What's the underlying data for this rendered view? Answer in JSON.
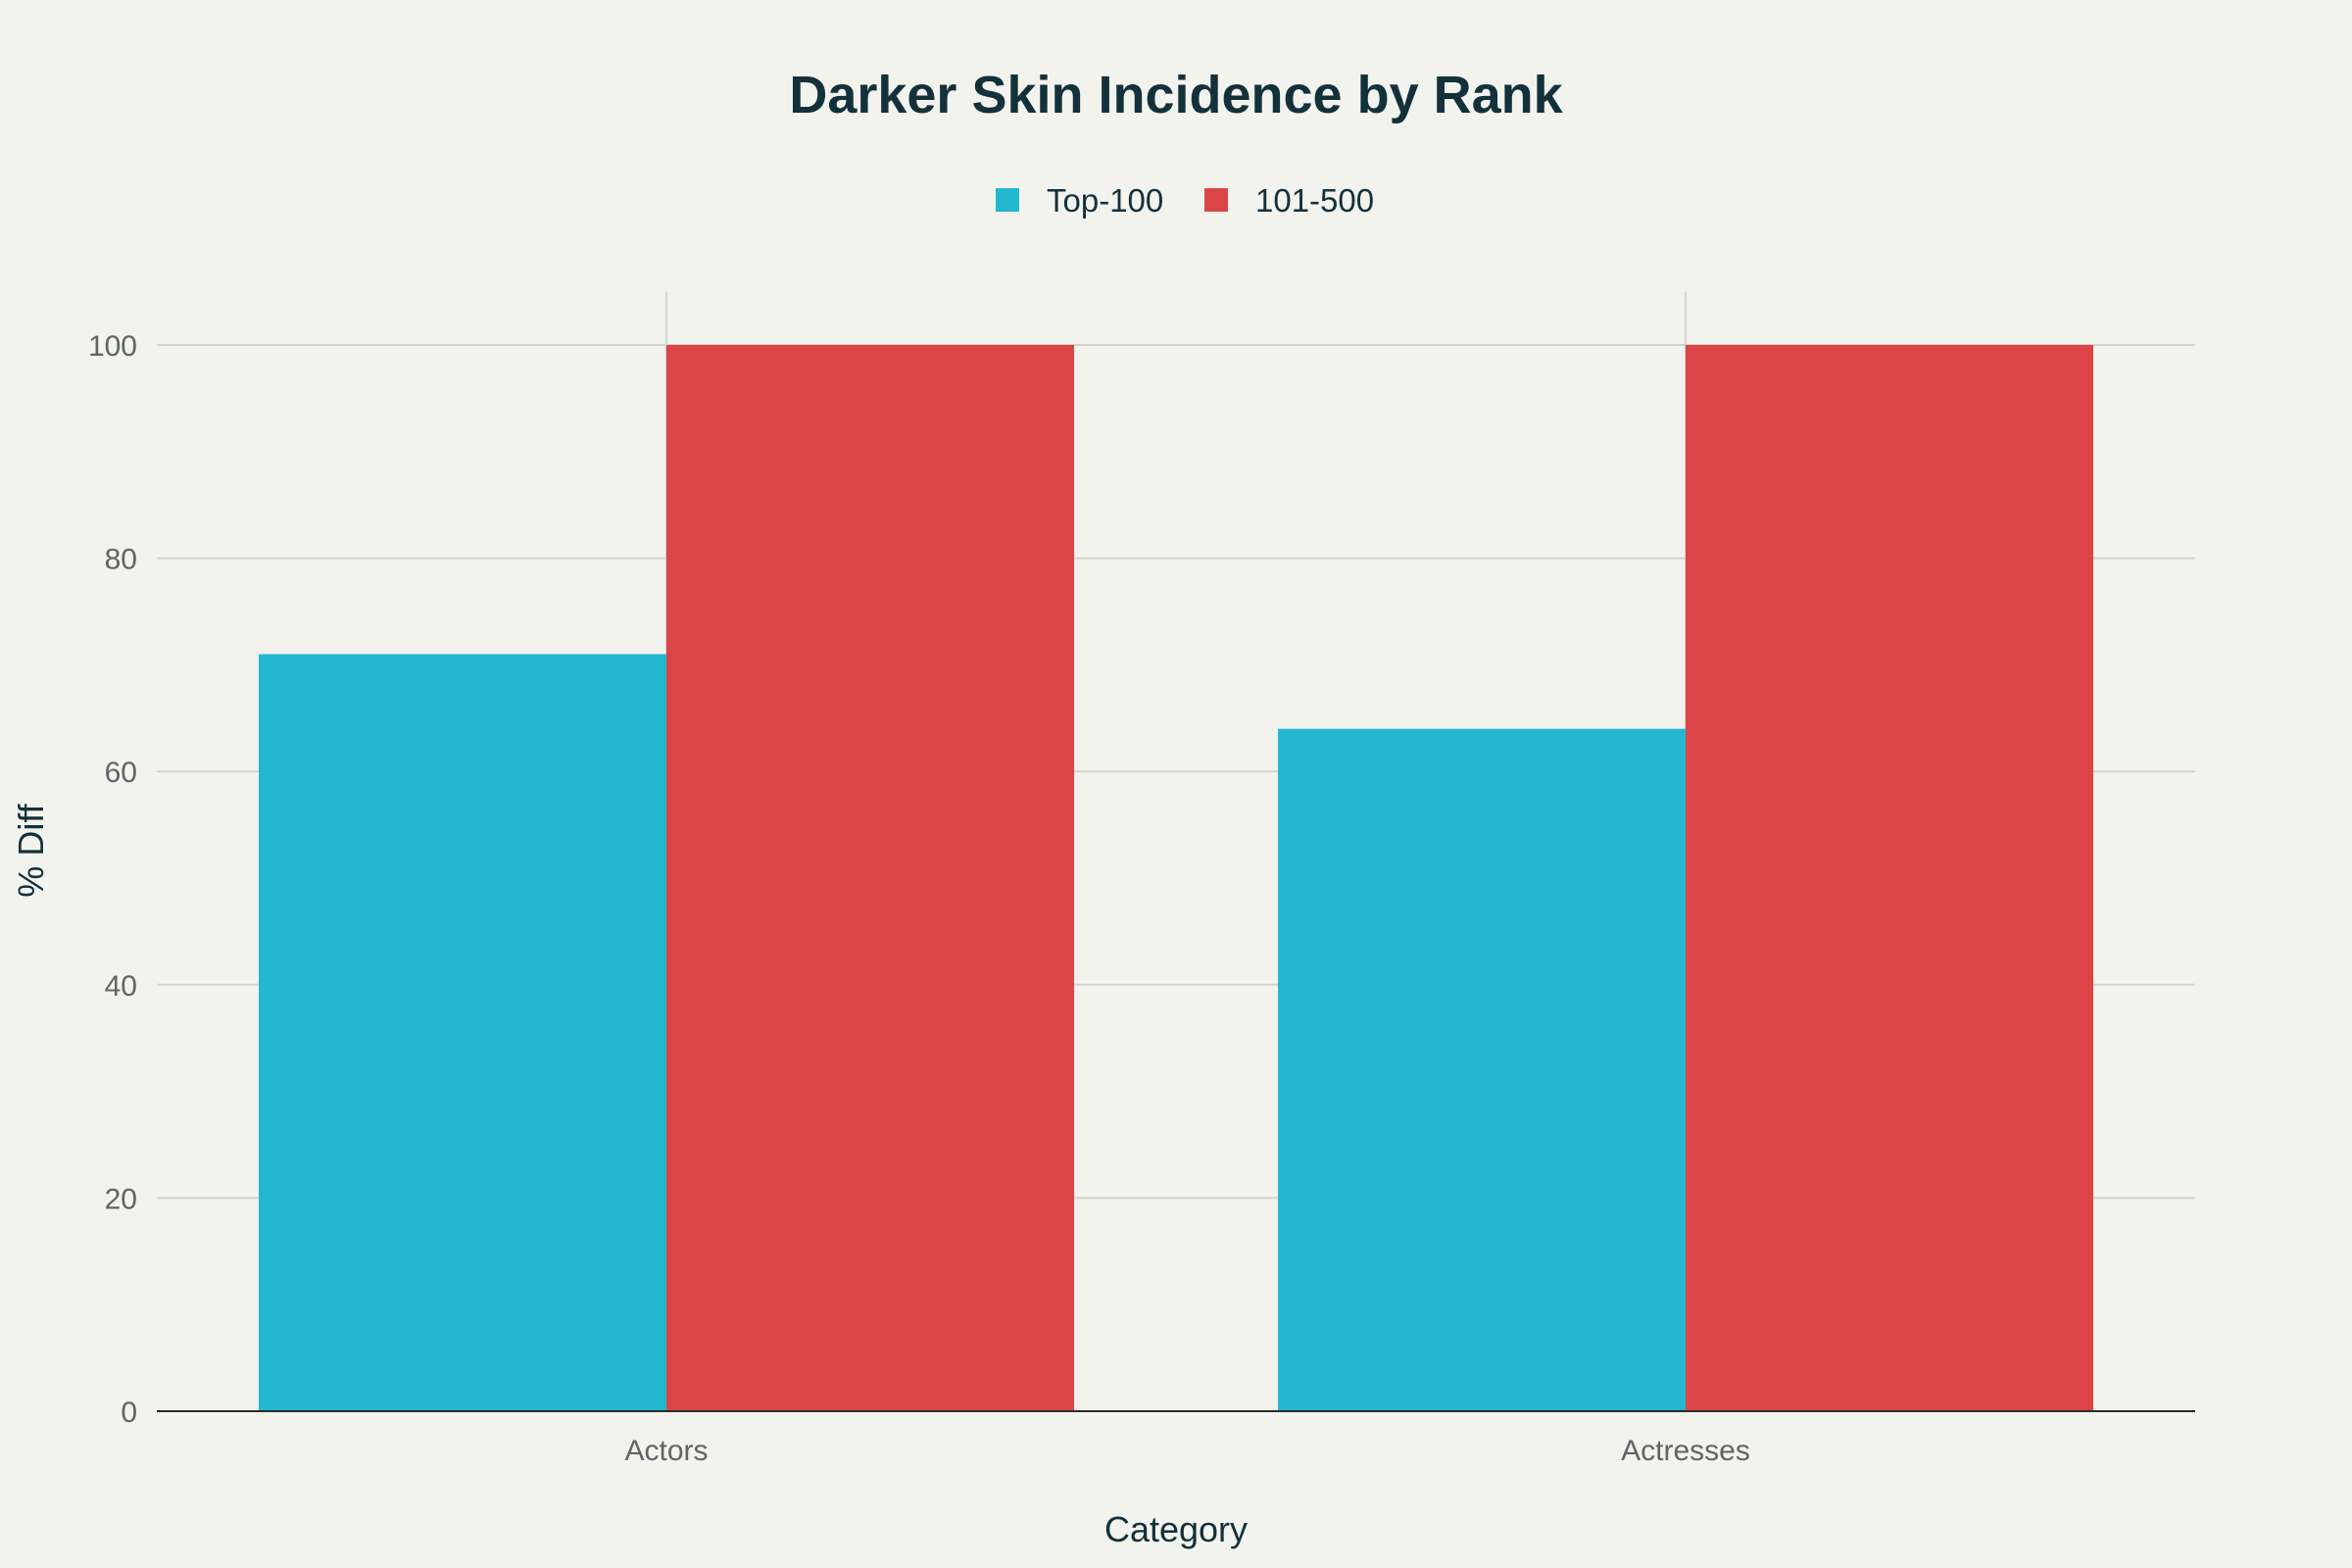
{
  "chart_data": {
    "type": "bar",
    "title": "Darker Skin Incidence by Rank",
    "xlabel": "Category",
    "ylabel": "% Diff",
    "categories": [
      "Actors",
      "Actresses"
    ],
    "series": [
      {
        "name": "Top-100",
        "values": [
          71,
          64
        ],
        "color": "#22b8cf"
      },
      {
        "name": "101-500",
        "values": [
          100,
          100
        ],
        "color": "#dc4548"
      }
    ],
    "ylim": [
      0,
      105
    ],
    "yticks": [
      0,
      20,
      40,
      60,
      80,
      100
    ],
    "grid": true,
    "legend": "top-center"
  }
}
